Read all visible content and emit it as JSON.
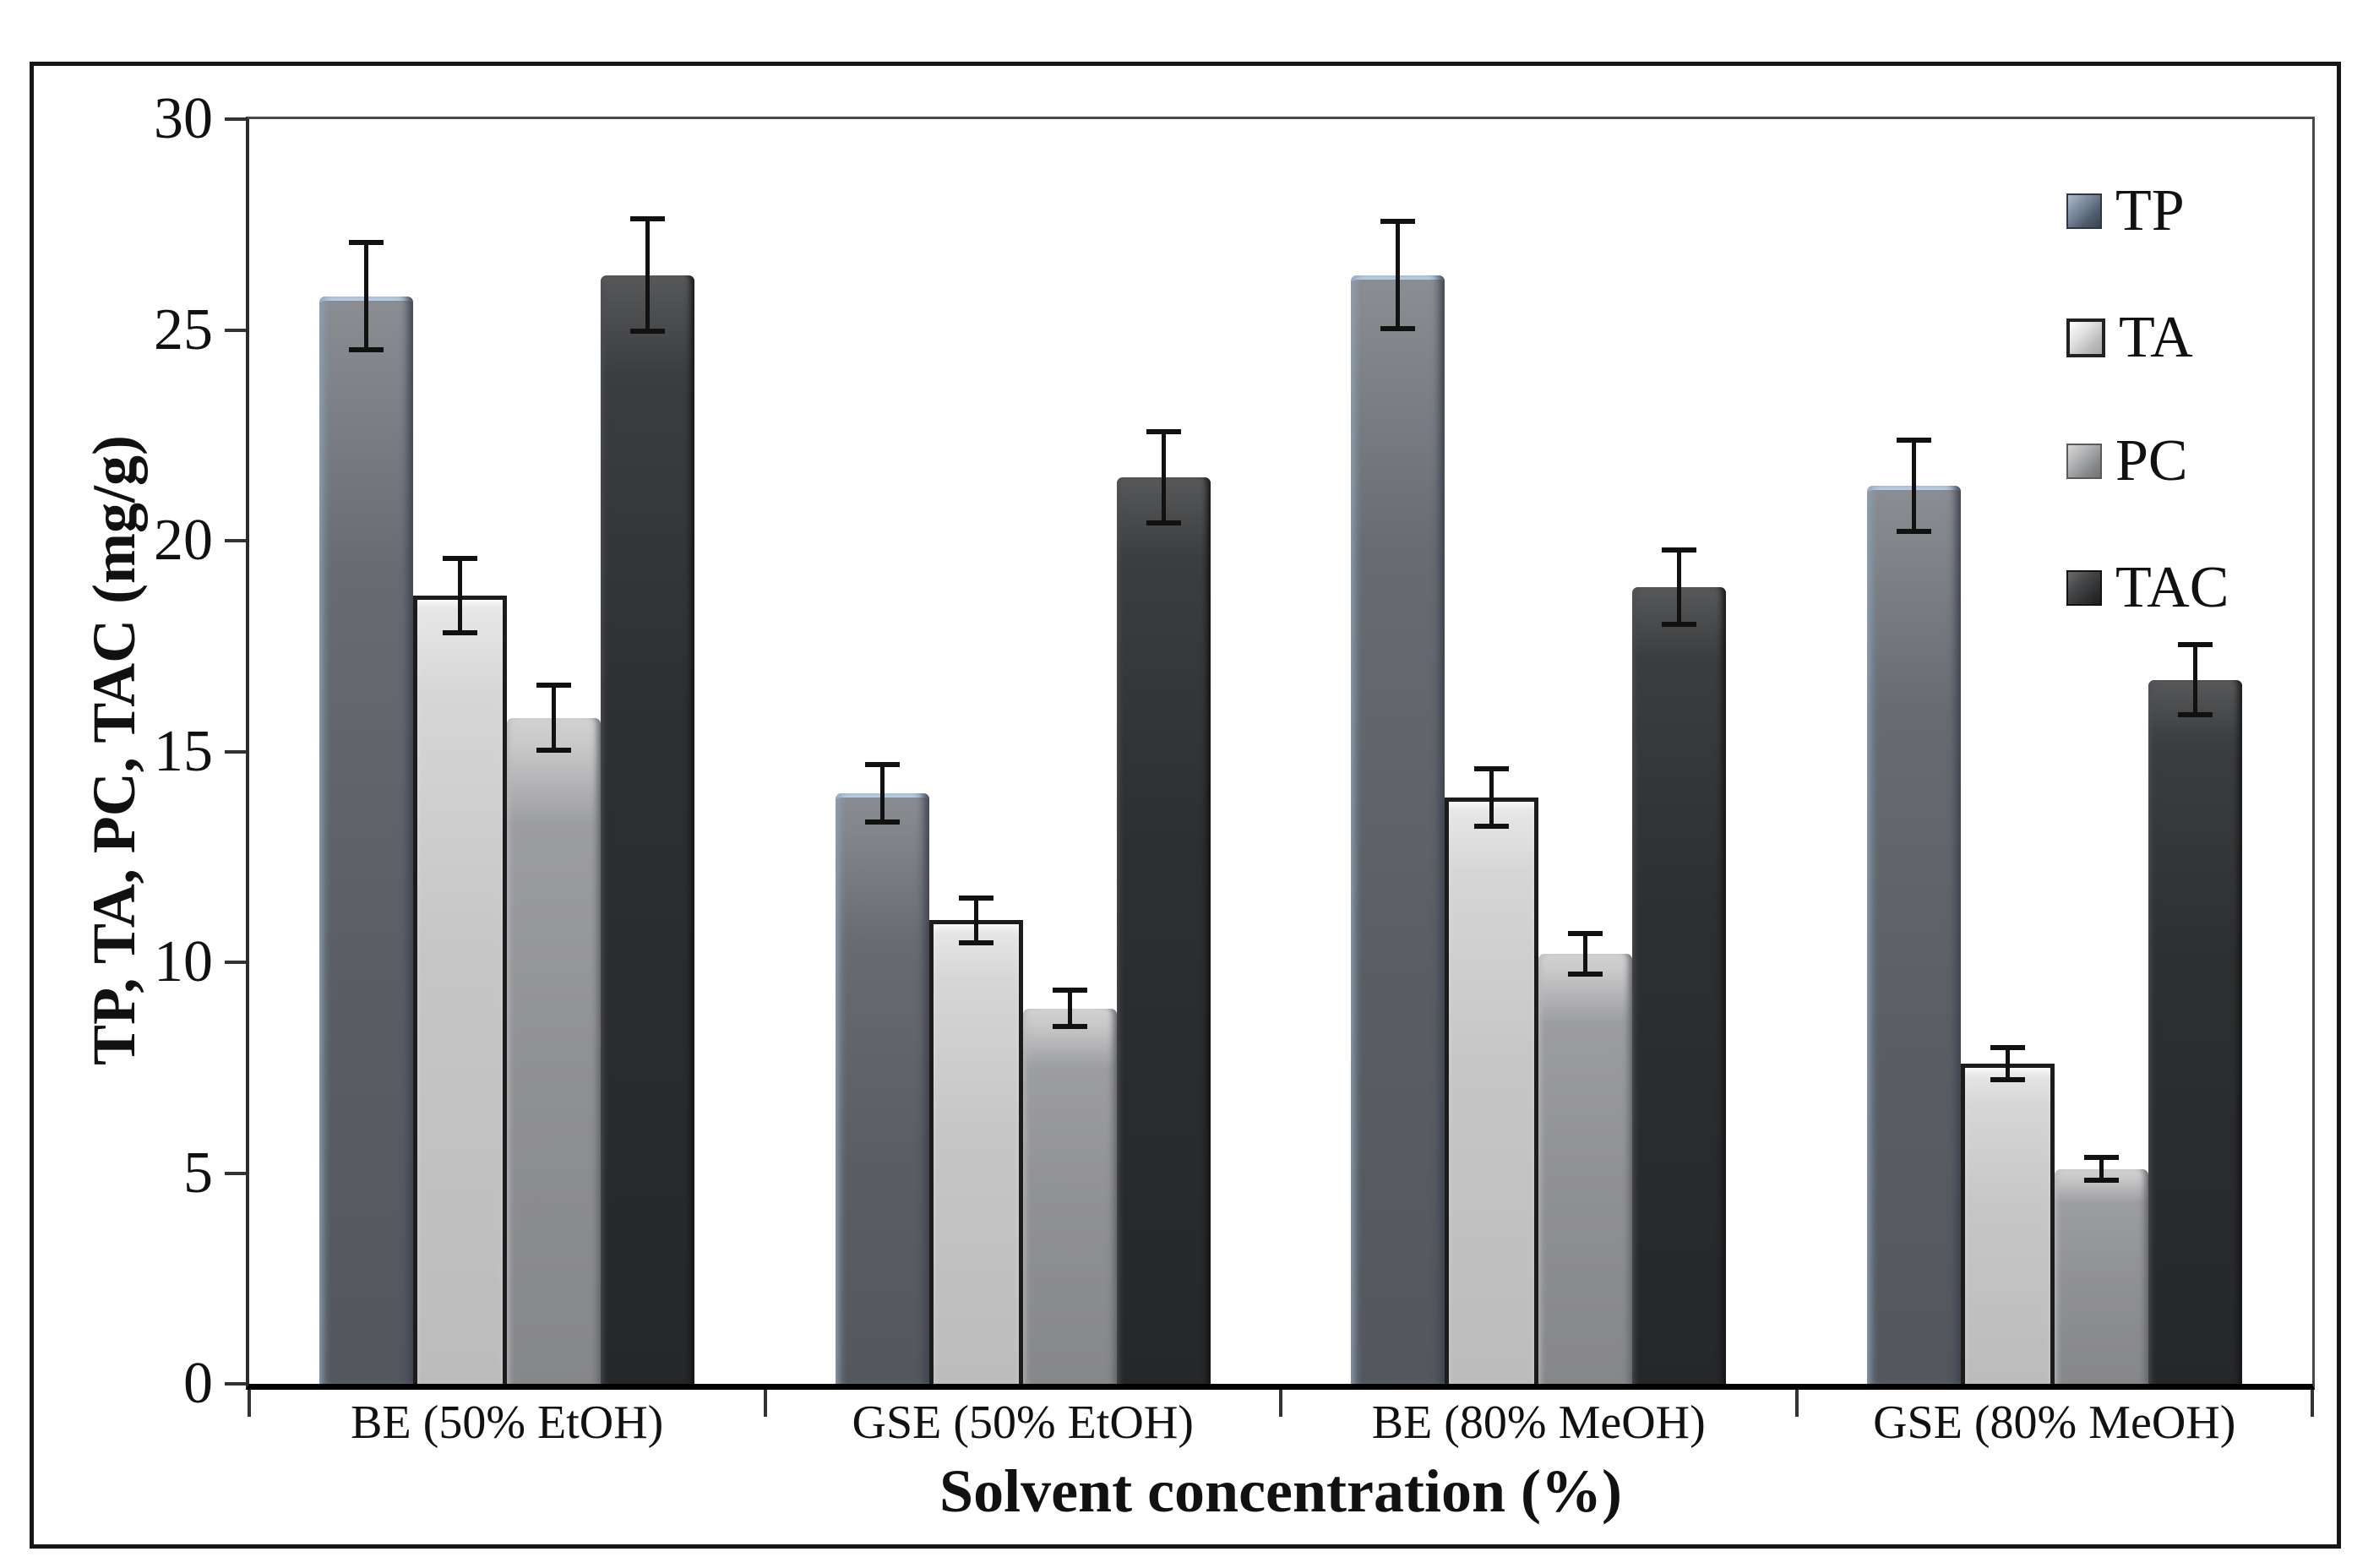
{
  "chart_data": {
    "type": "bar",
    "title": "",
    "xlabel": "Solvent concentration (%)",
    "ylabel": "TP, TA, PC, TAC (mg/g)",
    "ylim": [
      0,
      30
    ],
    "yticks": [
      0,
      5,
      10,
      15,
      20,
      25,
      30
    ],
    "categories": [
      "BE (50% EtOH)",
      "GSE (50% EtOH)",
      "BE (80% MeOH)",
      "GSE (80% MeOH)"
    ],
    "series": [
      {
        "name": "TP",
        "color": "#5c6066",
        "highlight_color": "#b9cfe6",
        "values": [
          25.8,
          14.0,
          26.3,
          21.3
        ],
        "errors": [
          1.3,
          0.7,
          1.3,
          1.1
        ]
      },
      {
        "name": "TA",
        "color": "#c6c6c6",
        "outline_color": "#1c1c1c",
        "values": [
          18.7,
          11.0,
          13.9,
          7.6
        ],
        "errors": [
          0.9,
          0.55,
          0.7,
          0.4
        ]
      },
      {
        "name": "PC",
        "color": "#8f9093",
        "values": [
          15.8,
          8.9,
          10.2,
          5.1
        ],
        "errors": [
          0.8,
          0.45,
          0.5,
          0.3
        ]
      },
      {
        "name": "TAC",
        "color": "#2b2d2f",
        "values": [
          26.3,
          21.5,
          18.9,
          16.7
        ],
        "errors": [
          1.35,
          1.1,
          0.9,
          0.85
        ]
      }
    ],
    "legend": {
      "position": "inside-top-right",
      "labels": [
        "TP",
        "TA",
        "PC",
        "TAC"
      ]
    },
    "grid": "off",
    "error_bar_color": "#111111",
    "axis_color": "#000000"
  }
}
